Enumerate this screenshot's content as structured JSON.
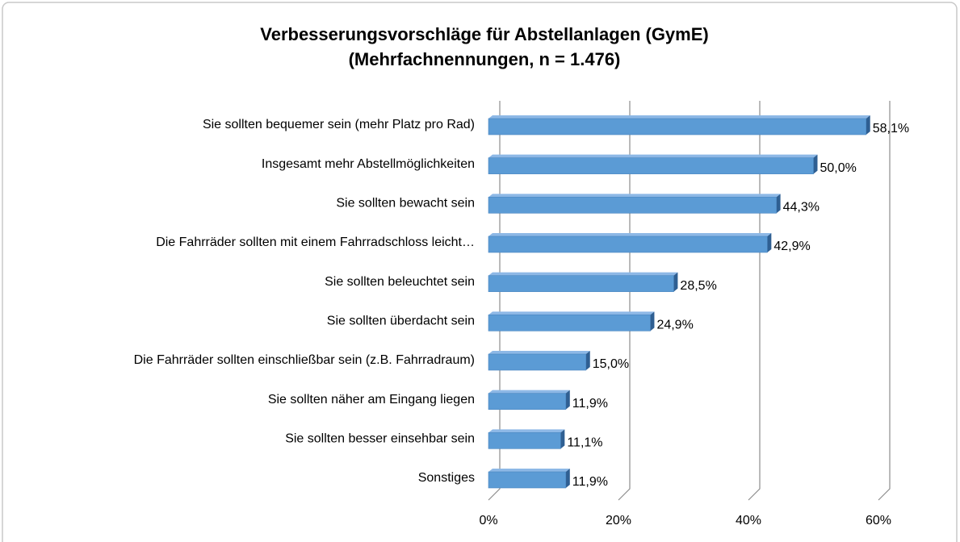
{
  "chart_data": {
    "type": "bar",
    "orientation": "horizontal",
    "title": [
      "Verbesserungsvorschläge für Abstellanlagen (GymE)",
      "(Mehrfachnennungen, n = 1.476)"
    ],
    "categories": [
      "Sie sollten bequemer sein (mehr Platz pro Rad)",
      "Insgesamt mehr Abstellmöglichkeiten",
      "Sie sollten bewacht sein",
      "Die Fahrräder sollten mit einem Fahrradschloss leicht…",
      "Sie sollten beleuchtet sein",
      "Sie sollten überdacht sein",
      "Die Fahrräder sollten einschließbar sein (z.B. Fahrradraum)",
      "Sie sollten näher am Eingang liegen",
      "Sie sollten besser einsehbar sein",
      "Sonstiges"
    ],
    "values": [
      58.1,
      50.0,
      44.3,
      42.9,
      28.5,
      24.9,
      15.0,
      11.9,
      11.1,
      11.9
    ],
    "value_labels": [
      "58,1%",
      "50,0%",
      "44,3%",
      "42,9%",
      "28,5%",
      "24,9%",
      "15,0%",
      "11,9%",
      "11,1%",
      "11,9%"
    ],
    "color": "#5b9bd5",
    "xlim": [
      0,
      60
    ],
    "xticks": [
      {
        "value": 0,
        "label": "0%"
      },
      {
        "value": 20,
        "label": "20%"
      },
      {
        "value": 40,
        "label": "40%"
      },
      {
        "value": 60,
        "label": "60%"
      }
    ],
    "grid": true
  }
}
